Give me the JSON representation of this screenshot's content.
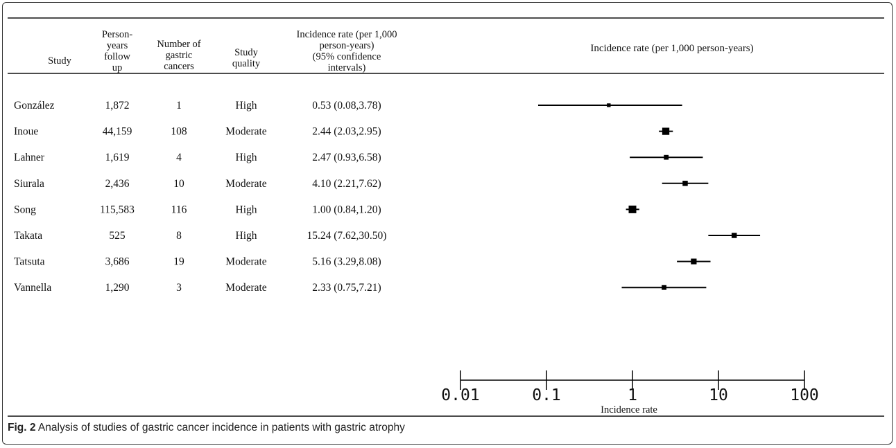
{
  "chart_data": {
    "type": "forest",
    "x_scale": "log",
    "xlim": [
      0.01,
      100
    ],
    "xlabel": "Incidence rate",
    "plot_header": "Incidence rate (per 1,000 person-years)",
    "x_ticks": [
      {
        "value": 0.01,
        "label": "0.01"
      },
      {
        "value": 0.1,
        "label": "0.1"
      },
      {
        "value": 1,
        "label": "1"
      },
      {
        "value": 10,
        "label": "10"
      },
      {
        "value": 100,
        "label": "100"
      }
    ],
    "columns": [
      {
        "key": "study",
        "lines": [
          "Study"
        ]
      },
      {
        "key": "person_years",
        "lines": [
          "Person-",
          "years",
          "follow",
          "up"
        ]
      },
      {
        "key": "cancers",
        "lines": [
          "Number of",
          "gastric",
          "cancers"
        ]
      },
      {
        "key": "quality",
        "lines": [
          "Study",
          "quality"
        ]
      },
      {
        "key": "rate_text",
        "lines": [
          "Incidence rate (per 1,000",
          "person-years)",
          "(95% confidence",
          "intervals)"
        ]
      }
    ],
    "rows": [
      {
        "study": "González",
        "person_years": "1,872",
        "cancers": "1",
        "quality": "High",
        "rate_text": "0.53 (0.08,3.78)",
        "estimate": 0.53,
        "ci_low": 0.08,
        "ci_high": 3.78,
        "weight": 0.2
      },
      {
        "study": "Inoue",
        "person_years": "44,159",
        "cancers": "108",
        "quality": "Moderate",
        "rate_text": "2.44 (2.03,2.95)",
        "estimate": 2.44,
        "ci_low": 2.03,
        "ci_high": 2.95,
        "weight": 0.9
      },
      {
        "study": "Lahner",
        "person_years": "1,619",
        "cancers": "4",
        "quality": "High",
        "rate_text": "2.47 (0.93,6.58)",
        "estimate": 2.47,
        "ci_low": 0.93,
        "ci_high": 6.58,
        "weight": 0.4
      },
      {
        "study": "Siurala",
        "person_years": "2,436",
        "cancers": "10",
        "quality": "Moderate",
        "rate_text": "4.10 (2.21,7.62)",
        "estimate": 4.1,
        "ci_low": 2.21,
        "ci_high": 7.62,
        "weight": 0.5
      },
      {
        "study": "Song",
        "person_years": "115,583",
        "cancers": "116",
        "quality": "High",
        "rate_text": "1.00 (0.84,1.20)",
        "estimate": 1.0,
        "ci_low": 0.84,
        "ci_high": 1.2,
        "weight": 1.0
      },
      {
        "study": "Takata",
        "person_years": "525",
        "cancers": "8",
        "quality": "High",
        "rate_text": "15.24 (7.62,30.50)",
        "estimate": 15.24,
        "ci_low": 7.62,
        "ci_high": 30.5,
        "weight": 0.5
      },
      {
        "study": "Tatsuta",
        "person_years": "3,686",
        "cancers": "19",
        "quality": "Moderate",
        "rate_text": "5.16 (3.29,8.08)",
        "estimate": 5.16,
        "ci_low": 3.29,
        "ci_high": 8.08,
        "weight": 0.6
      },
      {
        "study": "Vannella",
        "person_years": "1,290",
        "cancers": "3",
        "quality": "Moderate",
        "rate_text": "2.33 (0.75,7.21)",
        "estimate": 2.33,
        "ci_low": 0.75,
        "ci_high": 7.21,
        "weight": 0.4
      }
    ]
  },
  "caption": {
    "label": "Fig. 2",
    "text": " Analysis of studies of gastric cancer incidence in patients with gastric atrophy"
  }
}
